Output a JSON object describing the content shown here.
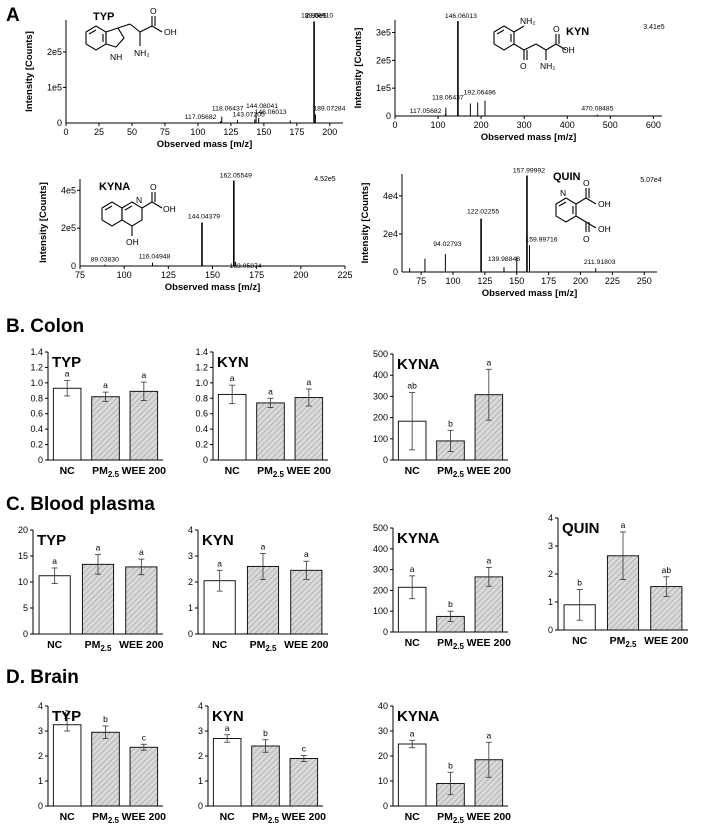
{
  "section_labels": {
    "A": "A",
    "B": "B. Colon",
    "C": "C. Blood plasma",
    "D": "D. Brain"
  },
  "chart_data": [
    {
      "id": "ms_typ",
      "type": "line",
      "panel_section": "A",
      "compound": "TYP",
      "xlabel": "Observed mass [m/z]",
      "ylabel": "Intensity [Counts]",
      "xlim": [
        0,
        210
      ],
      "ylim": [
        0,
        290000
      ],
      "x_ticks": [
        0,
        25,
        50,
        75,
        100,
        125,
        150,
        175,
        200
      ],
      "y_ticks": [
        {
          "v": 100000,
          "t": "1e5"
        },
        {
          "v": 200000,
          "t": "2e5"
        }
      ],
      "max_intensity_label": "2.86e5",
      "peaks": [
        {
          "mz": 117.05682,
          "i": 5000,
          "label": "117.05682"
        },
        {
          "mz": 118.06437,
          "i": 18000,
          "label": "118.06437"
        },
        {
          "mz": 130.0,
          "i": 8000,
          "label": ""
        },
        {
          "mz": 143.07205,
          "i": 10000,
          "label": "143.07205"
        },
        {
          "mz": 144.08041,
          "i": 26000,
          "label": "144.08041"
        },
        {
          "mz": 146.06013,
          "i": 14000,
          "label": "146.06013"
        },
        {
          "mz": 170.0,
          "i": 7000,
          "label": ""
        },
        {
          "mz": 188.0691,
          "i": 286000,
          "label": "188.06910"
        },
        {
          "mz": 189.07284,
          "i": 24000,
          "label": "189.07284"
        }
      ],
      "structure_labels": [
        "NH",
        "NH₂",
        "OH",
        "O"
      ]
    },
    {
      "id": "ms_kyn",
      "type": "line",
      "panel_section": "A",
      "compound": "KYN",
      "xlabel": "Observed mass [m/z]",
      "ylabel": "Intensity [Counts]",
      "xlim": [
        0,
        620
      ],
      "ylim": [
        0,
        345000
      ],
      "x_ticks": [
        0,
        100,
        200,
        300,
        400,
        500,
        600
      ],
      "y_ticks": [
        {
          "v": 100000,
          "t": "1e5"
        },
        {
          "v": 200000,
          "t": "2e5"
        },
        {
          "v": 300000,
          "t": "3e5"
        }
      ],
      "max_intensity_label": "3.41e5",
      "peaks": [
        {
          "mz": 117.05682,
          "i": 8000,
          "label": "117.05682"
        },
        {
          "mz": 118.06437,
          "i": 30000,
          "label": "118.06437"
        },
        {
          "mz": 146.06013,
          "i": 341000,
          "label": "146.06013"
        },
        {
          "mz": 175.0,
          "i": 45000,
          "label": ""
        },
        {
          "mz": 192.06486,
          "i": 48000,
          "label": "192.06486"
        },
        {
          "mz": 209.0,
          "i": 55000,
          "label": ""
        },
        {
          "mz": 470.08485,
          "i": 5000,
          "label": "470.08485"
        }
      ],
      "structure_labels": [
        "NH₂",
        "O",
        "OH",
        "NH₂",
        "O"
      ]
    },
    {
      "id": "ms_kyna",
      "type": "line",
      "panel_section": "A",
      "compound": "KYNA",
      "xlabel": "Observed mass [m/z]",
      "ylabel": "Intensity [Counts]",
      "xlim": [
        75,
        225
      ],
      "ylim": [
        0,
        460000
      ],
      "x_ticks": [
        75,
        100,
        125,
        150,
        175,
        200,
        225
      ],
      "y_ticks": [
        {
          "v": 200000,
          "t": "2e5"
        },
        {
          "v": 400000,
          "t": "4e5"
        }
      ],
      "max_intensity_label": "4.52e5",
      "peaks": [
        {
          "mz": 89.0383,
          "i": 7000,
          "label": "89.03830"
        },
        {
          "mz": 116.04948,
          "i": 18000,
          "label": "116.04948"
        },
        {
          "mz": 144.04379,
          "i": 230000,
          "label": "144.04379"
        },
        {
          "mz": 162.05549,
          "i": 452000,
          "label": "162.05549"
        },
        {
          "mz": 163.05874,
          "i": 22000,
          "label": "163.05874"
        }
      ],
      "structure_labels": [
        "N",
        "OH",
        "O",
        "OH"
      ]
    },
    {
      "id": "ms_quin",
      "type": "line",
      "panel_section": "A",
      "compound": "QUIN",
      "xlabel": "Observed mass [m/z]",
      "ylabel": "Intensity [Counts]",
      "xlim": [
        60,
        260
      ],
      "ylim": [
        0,
        51500
      ],
      "x_ticks": [
        75,
        100,
        125,
        150,
        175,
        200,
        225,
        250
      ],
      "y_ticks": [
        {
          "v": 20000,
          "t": "2e4"
        },
        {
          "v": 40000,
          "t": "4e4"
        }
      ],
      "max_intensity_label": "5.07e4",
      "peaks": [
        {
          "mz": 66.0,
          "i": 2000,
          "label": ""
        },
        {
          "mz": 78.0,
          "i": 7000,
          "label": ""
        },
        {
          "mz": 94.02793,
          "i": 9500,
          "label": "94.02793"
        },
        {
          "mz": 122.02255,
          "i": 28000,
          "label": "122.02255"
        },
        {
          "mz": 139.98848,
          "i": 2500,
          "label": "139.98848"
        },
        {
          "mz": 150.0,
          "i": 8000,
          "label": ""
        },
        {
          "mz": 157.99992,
          "i": 50700,
          "label": "157.99992"
        },
        {
          "mz": 159.99716,
          "i": 14000,
          "label": "159.99716"
        },
        {
          "mz": 211.91803,
          "i": 2000,
          "label": "211.91803"
        }
      ],
      "structure_labels": [
        "N",
        "OH",
        "O",
        "OH",
        "O"
      ]
    },
    {
      "id": "colon_typ",
      "type": "bar",
      "panel_section": "B",
      "title": "TYP",
      "categories": [
        "NC",
        "PM2.5",
        "WEE 200"
      ],
      "values": [
        0.93,
        0.82,
        0.89
      ],
      "errors": [
        0.1,
        0.06,
        0.12
      ],
      "letters": [
        "a",
        "a",
        "a"
      ],
      "ylim": [
        0,
        1.4
      ],
      "y_ticks": [
        {
          "v": 0,
          "t": "0"
        },
        {
          "v": 0.2,
          "t": "0.2"
        },
        {
          "v": 0.4,
          "t": "0.4"
        },
        {
          "v": 0.6,
          "t": "0.6"
        },
        {
          "v": 0.8,
          "t": "0.8"
        },
        {
          "v": 1.0,
          "t": "1.0"
        },
        {
          "v": 1.2,
          "t": "1.2"
        },
        {
          "v": 1.4,
          "t": "1.4"
        }
      ]
    },
    {
      "id": "colon_kyn",
      "type": "bar",
      "panel_section": "B",
      "title": "KYN",
      "categories": [
        "NC",
        "PM2.5",
        "WEE 200"
      ],
      "values": [
        0.85,
        0.74,
        0.81
      ],
      "errors": [
        0.12,
        0.06,
        0.11
      ],
      "letters": [
        "a",
        "a",
        "a"
      ],
      "ylim": [
        0,
        1.4
      ],
      "y_ticks": [
        {
          "v": 0,
          "t": "0"
        },
        {
          "v": 0.2,
          "t": "0.2"
        },
        {
          "v": 0.4,
          "t": "0.4"
        },
        {
          "v": 0.6,
          "t": "0.6"
        },
        {
          "v": 0.8,
          "t": "0.8"
        },
        {
          "v": 1.0,
          "t": "1.0"
        },
        {
          "v": 1.2,
          "t": "1.2"
        },
        {
          "v": 1.4,
          "t": "1.4"
        }
      ]
    },
    {
      "id": "colon_kyna",
      "type": "bar",
      "panel_section": "B",
      "title": "KYNA",
      "categories": [
        "NC",
        "PM2.5",
        "WEE 200"
      ],
      "values": [
        183,
        90,
        308
      ],
      "errors": [
        135,
        50,
        120
      ],
      "letters": [
        "ab",
        "b",
        "a"
      ],
      "ylim": [
        0,
        500
      ],
      "y_ticks": [
        {
          "v": 0,
          "t": "0"
        },
        {
          "v": 100,
          "t": "100"
        },
        {
          "v": 200,
          "t": "200"
        },
        {
          "v": 300,
          "t": "300"
        },
        {
          "v": 400,
          "t": "400"
        },
        {
          "v": 500,
          "t": "500"
        }
      ]
    },
    {
      "id": "plasma_typ",
      "type": "bar",
      "panel_section": "C",
      "title": "TYP",
      "categories": [
        "NC",
        "PM2.5",
        "WEE 200"
      ],
      "values": [
        11.2,
        13.4,
        12.9
      ],
      "errors": [
        1.5,
        1.9,
        1.5
      ],
      "letters": [
        "a",
        "a",
        "a"
      ],
      "ylim": [
        0,
        20
      ],
      "y_ticks": [
        {
          "v": 0,
          "t": "0"
        },
        {
          "v": 5,
          "t": "5"
        },
        {
          "v": 10,
          "t": "10"
        },
        {
          "v": 15,
          "t": "15"
        },
        {
          "v": 20,
          "t": "20"
        }
      ]
    },
    {
      "id": "plasma_kyn",
      "type": "bar",
      "panel_section": "C",
      "title": "KYN",
      "categories": [
        "NC",
        "PM2.5",
        "WEE 200"
      ],
      "values": [
        2.05,
        2.6,
        2.45
      ],
      "errors": [
        0.4,
        0.5,
        0.35
      ],
      "letters": [
        "a",
        "a",
        "a"
      ],
      "ylim": [
        0,
        4
      ],
      "y_ticks": [
        {
          "v": 0,
          "t": "0"
        },
        {
          "v": 1,
          "t": "1"
        },
        {
          "v": 2,
          "t": "2"
        },
        {
          "v": 3,
          "t": "3"
        },
        {
          "v": 4,
          "t": "4"
        }
      ]
    },
    {
      "id": "plasma_kyna",
      "type": "bar",
      "panel_section": "C",
      "title": "KYNA",
      "categories": [
        "NC",
        "PM2.5",
        "WEE 200"
      ],
      "values": [
        215,
        75,
        265
      ],
      "errors": [
        55,
        25,
        45
      ],
      "letters": [
        "a",
        "b",
        "a"
      ],
      "ylim": [
        0,
        500
      ],
      "y_ticks": [
        {
          "v": 0,
          "t": "0"
        },
        {
          "v": 100,
          "t": "100"
        },
        {
          "v": 200,
          "t": "200"
        },
        {
          "v": 300,
          "t": "300"
        },
        {
          "v": 400,
          "t": "400"
        },
        {
          "v": 500,
          "t": "500"
        }
      ]
    },
    {
      "id": "plasma_quin",
      "type": "bar",
      "panel_section": "C",
      "title": "QUIN",
      "categories": [
        "NC",
        "PM2.5",
        "WEE 200"
      ],
      "values": [
        0.9,
        2.65,
        1.55
      ],
      "errors": [
        0.55,
        0.85,
        0.35
      ],
      "letters": [
        "b",
        "a",
        "ab"
      ],
      "ylim": [
        0,
        4
      ],
      "y_ticks": [
        {
          "v": 0,
          "t": "0"
        },
        {
          "v": 1,
          "t": "1"
        },
        {
          "v": 2,
          "t": "2"
        },
        {
          "v": 3,
          "t": "3"
        },
        {
          "v": 4,
          "t": "4"
        }
      ]
    },
    {
      "id": "brain_typ",
      "type": "bar",
      "panel_section": "D",
      "title": "TYP",
      "categories": [
        "NC",
        "PM2.5",
        "WEE 200"
      ],
      "values": [
        3.25,
        2.95,
        2.35
      ],
      "errors": [
        0.25,
        0.25,
        0.12
      ],
      "letters": [
        "a",
        "b",
        "c"
      ],
      "ylim": [
        0,
        4
      ],
      "y_ticks": [
        {
          "v": 0,
          "t": "0"
        },
        {
          "v": 1,
          "t": "1"
        },
        {
          "v": 2,
          "t": "2"
        },
        {
          "v": 3,
          "t": "3"
        },
        {
          "v": 4,
          "t": "4"
        }
      ]
    },
    {
      "id": "brain_kyn",
      "type": "bar",
      "panel_section": "D",
      "title": "KYN",
      "categories": [
        "NC",
        "PM2.5",
        "WEE 200"
      ],
      "values": [
        2.7,
        2.4,
        1.9
      ],
      "errors": [
        0.15,
        0.25,
        0.12
      ],
      "letters": [
        "a",
        "b",
        "c"
      ],
      "ylim": [
        0,
        4
      ],
      "y_ticks": [
        {
          "v": 0,
          "t": "0"
        },
        {
          "v": 1,
          "t": "1"
        },
        {
          "v": 2,
          "t": "2"
        },
        {
          "v": 3,
          "t": "3"
        },
        {
          "v": 4,
          "t": "4"
        }
      ]
    },
    {
      "id": "brain_kyna",
      "type": "bar",
      "panel_section": "D",
      "title": "KYNA",
      "categories": [
        "NC",
        "PM2.5",
        "WEE 200"
      ],
      "values": [
        24.8,
        9.0,
        18.5
      ],
      "errors": [
        1.5,
        4.5,
        7.0
      ],
      "letters": [
        "a",
        "b",
        "a"
      ],
      "ylim": [
        0,
        40
      ],
      "y_ticks": [
        {
          "v": 0,
          "t": "0"
        },
        {
          "v": 10,
          "t": "10"
        },
        {
          "v": 20,
          "t": "20"
        },
        {
          "v": 30,
          "t": "30"
        },
        {
          "v": 40,
          "t": "40"
        }
      ]
    }
  ]
}
